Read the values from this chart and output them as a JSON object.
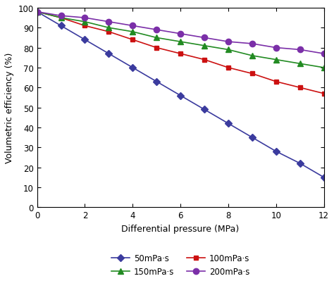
{
  "x": [
    0,
    1,
    2,
    3,
    4,
    5,
    6,
    7,
    8,
    9,
    10,
    11,
    12
  ],
  "series": [
    {
      "key": "50mPa·s",
      "y": [
        98,
        91,
        84,
        77,
        70,
        63,
        56,
        49,
        42,
        35,
        28,
        22,
        15
      ],
      "color": "#3b3b9e",
      "marker": "D",
      "markersize": 5,
      "label": "50mPa·s"
    },
    {
      "key": "100mPa·s",
      "y": [
        98,
        95,
        91,
        88,
        84,
        80,
        77,
        74,
        70,
        67,
        63,
        60,
        57
      ],
      "color": "#cc1111",
      "marker": "s",
      "markersize": 5,
      "label": "100mPa·s"
    },
    {
      "key": "150mPa·s",
      "y": [
        98,
        95,
        93,
        90,
        88,
        85,
        83,
        81,
        79,
        76,
        74,
        72,
        70
      ],
      "color": "#228B22",
      "marker": "^",
      "markersize": 6,
      "label": "150mPa·s"
    },
    {
      "key": "200mPa·s",
      "y": [
        98,
        96,
        95,
        93,
        91,
        89,
        87,
        85,
        83,
        82,
        80,
        79,
        77
      ],
      "color": "#7b2fa8",
      "marker": "o",
      "markersize": 6,
      "label": "200mPa·s"
    }
  ],
  "xlabel": "Differential pressure (MPa)",
  "ylabel": "Volumetric efficiency (%)",
  "xlim": [
    0,
    12
  ],
  "ylim": [
    0,
    100
  ],
  "xticks": [
    0,
    2,
    4,
    6,
    8,
    10,
    12
  ],
  "yticks": [
    0,
    10,
    20,
    30,
    40,
    50,
    60,
    70,
    80,
    90,
    100
  ],
  "background_color": "#ffffff",
  "linewidth": 1.2,
  "legend_ncol": 2,
  "legend_col_order": [
    0,
    2,
    1,
    3
  ]
}
